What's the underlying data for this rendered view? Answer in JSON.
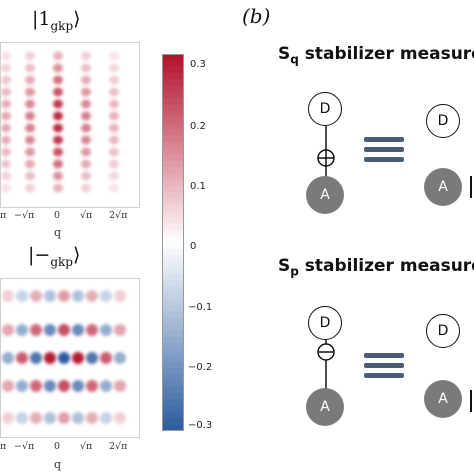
{
  "panel_a": {
    "plot_top": {
      "title_ket": "|1",
      "title_sub": "gkp",
      "title_close": "⟩",
      "xlabel": "q",
      "xticks": [
        "π",
        "−√π",
        "0",
        "√π",
        "2√π"
      ]
    },
    "plot_bottom": {
      "title_ket": "|−",
      "title_sub": "gkp",
      "title_close": "⟩",
      "xlabel": "q",
      "xticks": [
        "π",
        "−√π",
        "0",
        "√π",
        "2√π"
      ]
    },
    "colorbar": {
      "ticks": [
        "0.3",
        "0.2",
        "0.1",
        "0",
        "−0.1",
        "−0.2",
        "−0.3"
      ],
      "low_color": "#2b5c9e",
      "mid_color": "#ffffff",
      "high_color": "#b3102a"
    }
  },
  "panel_b": {
    "letter": "(b)",
    "sq": {
      "title_main": "S",
      "title_sub": "q",
      "title_rest": " stabilizer measure"
    },
    "sp": {
      "title_main": "S",
      "title_sub": "p",
      "title_rest": " stabilizer measure"
    },
    "data_qubit_label": "D",
    "ancilla_qubit_label": "A",
    "accent_gray": "#7a7a7a",
    "equiv_color": "#4a5c75"
  }
}
